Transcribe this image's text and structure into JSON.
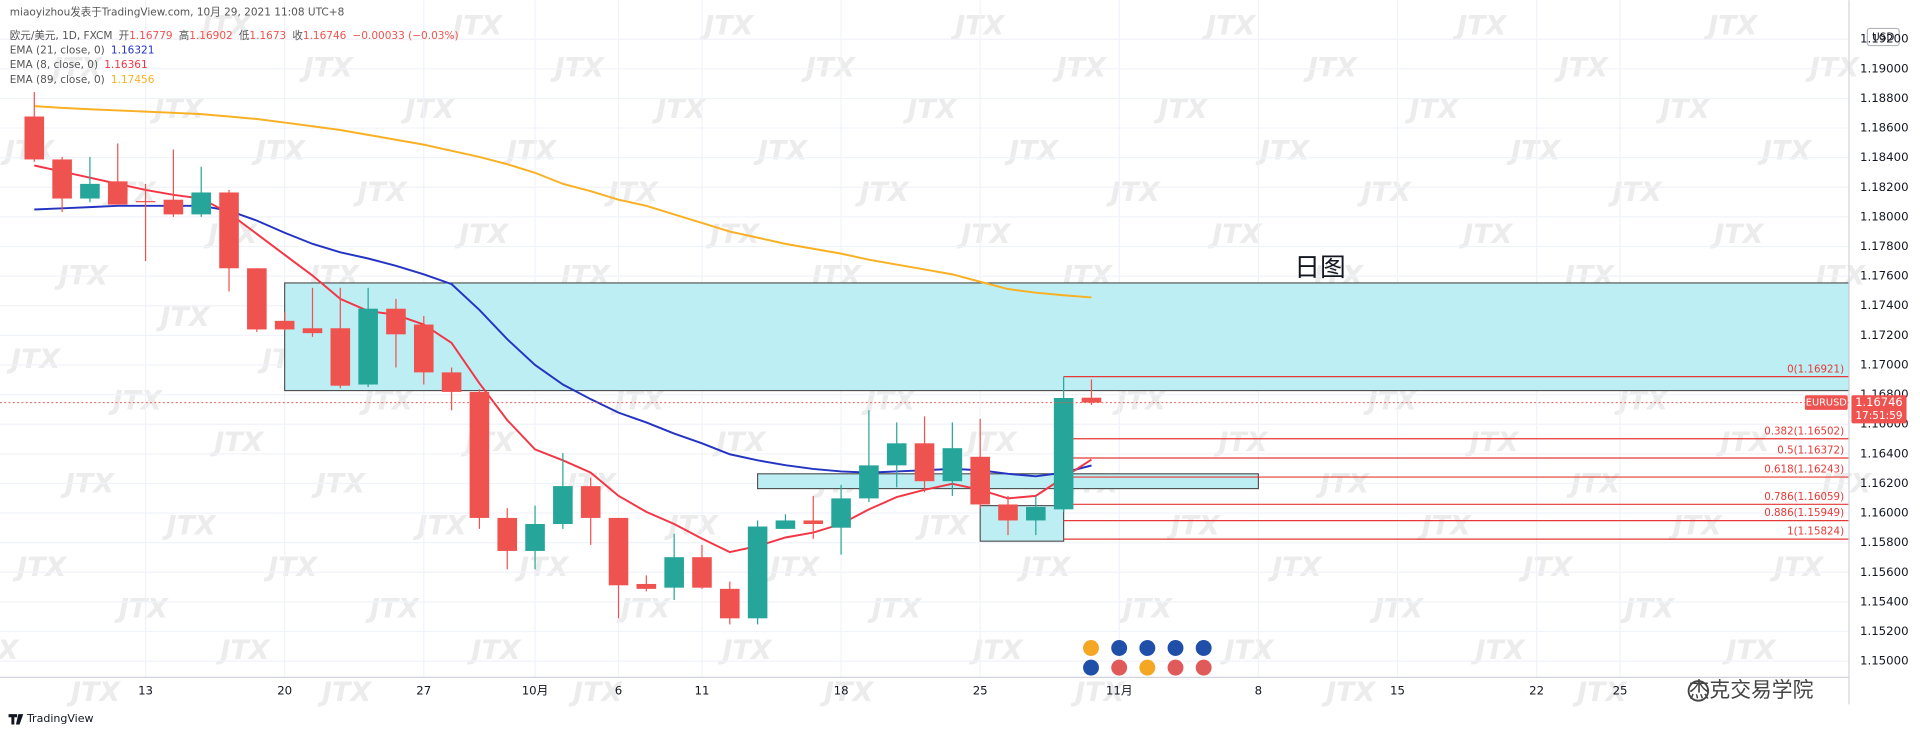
{
  "chart_data": {
    "type": "candlestick",
    "title": "miaoyizhou发表于TradingView.com, 10月 29, 2021 11:08 UTC+8",
    "symbol": "欧元/美元, 1D, FXCM",
    "ohlc_labels": [
      "开",
      "高",
      "低",
      "收"
    ],
    "change": "−0.00033 (−0.03%)",
    "currency": "USD",
    "symbol_tag": "EURUSD",
    "countdown": "17:51:59",
    "annotation": "日图",
    "watermark": "JTX",
    "credit": "杰克交易学院",
    "footer": "TradingView",
    "grid": true,
    "up_color": "#26a69a",
    "down_color": "#ef5350",
    "categories": [
      null,
      null,
      null,
      null,
      "13",
      null,
      null,
      null,
      null,
      "20",
      null,
      null,
      null,
      null,
      "27",
      null,
      null,
      null,
      "10月",
      null,
      null,
      "6",
      null,
      null,
      "11",
      null,
      null,
      null,
      null,
      "18",
      null,
      null,
      null,
      null,
      "25",
      null,
      null,
      null,
      null,
      "11月",
      null,
      null,
      null,
      null,
      "8",
      null,
      null,
      null,
      null,
      "15",
      null,
      null,
      null,
      null,
      "22",
      null,
      null,
      "25"
    ],
    "open": [
      1.18678,
      1.18388,
      1.18124,
      1.1824,
      1.18107,
      1.18116,
      1.18017,
      1.18165,
      1.17653,
      1.17298,
      1.17248,
      1.17248,
      1.16868,
      1.1738,
      1.17273,
      1.1695,
      1.16818,
      1.15967,
      1.15744,
      1.15926,
      1.16182,
      1.15967,
      1.15521,
      1.15496,
      1.15702,
      1.15488,
      1.15289,
      1.15893,
      1.1595,
      1.15901,
      1.16099,
      1.16322,
      1.16471,
      1.16215,
      1.1638,
      1.16058,
      1.1595,
      1.16025,
      1.16779,
      null,
      null,
      null,
      null,
      null,
      null,
      null,
      null,
      null,
      null,
      null,
      null,
      null,
      null,
      null,
      null,
      null,
      null,
      null
    ],
    "high": [
      1.18843,
      1.18405,
      1.18405,
      1.18496,
      1.18223,
      1.18455,
      1.18339,
      1.18182,
      1.17653,
      1.17355,
      1.17521,
      1.17521,
      1.17521,
      1.17446,
      1.17331,
      1.16983,
      1.16835,
      1.16033,
      1.1605,
      1.16405,
      1.1624,
      1.15967,
      1.15579,
      1.1586,
      1.15785,
      1.15537,
      1.1595,
      1.15992,
      1.16116,
      1.1619,
      1.16694,
      1.16612,
      1.16653,
      1.16612,
      1.16636,
      1.16116,
      1.16116,
      1.16921,
      1.16902,
      null,
      null,
      null,
      null,
      null,
      null,
      null,
      null,
      null,
      null,
      null,
      null,
      null,
      null,
      null,
      null,
      null,
      null,
      null
    ],
    "low": [
      1.18372,
      1.18033,
      1.18099,
      1.18083,
      1.17702,
      1.18,
      1.18,
      1.17496,
      1.17223,
      1.17231,
      1.1719,
      1.16843,
      1.16851,
      1.16983,
      1.16868,
      1.16694,
      1.15893,
      1.1562,
      1.1562,
      1.15893,
      1.15785,
      1.15289,
      1.15471,
      1.15413,
      1.15488,
      1.15248,
      1.15248,
      1.15893,
      1.15826,
      1.15719,
      1.16074,
      1.16174,
      1.1614,
      1.16116,
      1.16033,
      1.15851,
      1.15851,
      1.16008,
      1.1673,
      null,
      null,
      null,
      null,
      null,
      null,
      null,
      null,
      null,
      null,
      null,
      null,
      null,
      null,
      null,
      null,
      null,
      null,
      null
    ],
    "close": [
      1.18388,
      1.18124,
      1.18223,
      1.18083,
      1.18099,
      1.18017,
      1.18165,
      1.17653,
      1.1724,
      1.1724,
      1.17215,
      1.1686,
      1.1738,
      1.17207,
      1.1695,
      1.16818,
      1.15967,
      1.15744,
      1.15926,
      1.16182,
      1.15967,
      1.15512,
      1.15488,
      1.15702,
      1.15496,
      1.15289,
      1.15909,
      1.1595,
      1.15926,
      1.16099,
      1.16322,
      1.16471,
      1.16215,
      1.16438,
      1.16058,
      1.1595,
      1.16041,
      1.16777,
      1.16746,
      null,
      null,
      null,
      null,
      null,
      null,
      null,
      null,
      null,
      null,
      null,
      null,
      null,
      null,
      null,
      null,
      null,
      null,
      null
    ],
    "series": [
      {
        "name": "EMA (21, close, 0)",
        "color": "#2434c2",
        "values": [
          1.1805,
          1.18058,
          1.18066,
          1.18075,
          1.18075,
          1.18075,
          1.18075,
          1.18042,
          1.17975,
          1.17893,
          1.17818,
          1.17761,
          1.17719,
          1.1767,
          1.17612,
          1.17546,
          1.17372,
          1.17174,
          1.17,
          1.16868,
          1.16769,
          1.16678,
          1.16612,
          1.16537,
          1.16471,
          1.16397,
          1.16356,
          1.16323,
          1.16298,
          1.16281,
          1.16273,
          1.16281,
          1.16289,
          1.16298,
          1.16289,
          1.16265,
          1.16248,
          1.16273,
          1.16321,
          null,
          null,
          null,
          null,
          null,
          null,
          null,
          null,
          null,
          null,
          null,
          null,
          null,
          null,
          null,
          null,
          null,
          null,
          null
        ]
      },
      {
        "name": "EMA (8, close, 0)",
        "color": "#f23645",
        "values": [
          1.18347,
          1.18306,
          1.18265,
          1.18223,
          1.18182,
          1.18149,
          1.18124,
          1.18025,
          1.17885,
          1.17744,
          1.17604,
          1.17446,
          1.17364,
          1.17339,
          1.17273,
          1.17149,
          1.16876,
          1.16628,
          1.1643,
          1.16356,
          1.16273,
          1.16116,
          1.16008,
          1.15926,
          1.15827,
          1.15736,
          1.15777,
          1.15835,
          1.15868,
          1.15926,
          1.16025,
          1.16108,
          1.16157,
          1.16198,
          1.16157,
          1.16099,
          1.16116,
          1.1624,
          1.16361,
          null,
          null,
          null,
          null,
          null,
          null,
          null,
          null,
          null,
          null,
          null,
          null,
          null,
          null,
          null,
          null,
          null,
          null,
          null
        ]
      },
      {
        "name": "EMA (89, close, 0)",
        "color": "#f9b023",
        "values": [
          1.18748,
          1.18736,
          1.18727,
          1.18719,
          1.18711,
          1.18703,
          1.18694,
          1.18678,
          1.18661,
          1.18637,
          1.18612,
          1.18587,
          1.18554,
          1.18521,
          1.18488,
          1.18446,
          1.18405,
          1.18356,
          1.18298,
          1.18223,
          1.18174,
          1.18116,
          1.18075,
          1.18017,
          1.17959,
          1.17901,
          1.1786,
          1.17818,
          1.17785,
          1.17752,
          1.17711,
          1.17678,
          1.17645,
          1.17612,
          1.17562,
          1.17513,
          1.17488,
          1.17471,
          1.17456,
          null,
          null,
          null,
          null,
          null,
          null,
          null,
          null,
          null,
          null,
          null,
          null,
          null,
          null,
          null,
          null,
          null,
          null,
          null
        ]
      }
    ],
    "zones": [
      {
        "top": 1.17554,
        "bottom": 1.16827,
        "from": 9,
        "extend": true
      },
      {
        "top": 1.16265,
        "bottom": 1.16165,
        "from": 26,
        "to": 44
      },
      {
        "top": 1.1605,
        "bottom": 1.1581,
        "from": 34,
        "to": 37
      }
    ],
    "zone_color": "#bdeef4",
    "fib_from": 37,
    "fib_color": "#e53935",
    "fib_levels": [
      {
        "value": 1.16921,
        "label": "0(1.16921)"
      },
      {
        "value": 1.16502,
        "label": "0.382(1.16502)"
      },
      {
        "value": 1.16372,
        "label": "0.5(1.16372)"
      },
      {
        "value": 1.16243,
        "label": "0.618(1.16243)"
      },
      {
        "value": 1.16059,
        "label": "0.786(1.16059)"
      },
      {
        "value": 1.15949,
        "label": "0.886(1.15949)"
      },
      {
        "value": 1.15824,
        "label": "1(1.15824)"
      }
    ],
    "ylim": [
      1.1489,
      1.19463
    ],
    "yticks": [
      {
        "value": 1.15,
        "label": "1.15000"
      },
      {
        "value": 1.152,
        "label": "1.15200"
      },
      {
        "value": 1.154,
        "label": "1.15400"
      },
      {
        "value": 1.156,
        "label": "1.15600"
      },
      {
        "value": 1.158,
        "label": "1.15800"
      },
      {
        "value": 1.16,
        "label": "1.16000"
      },
      {
        "value": 1.162,
        "label": "1.16200"
      },
      {
        "value": 1.164,
        "label": "1.16400"
      },
      {
        "value": 1.166,
        "label": "1.16600"
      },
      {
        "value": 1.168,
        "label": "1.16800"
      },
      {
        "value": 1.17,
        "label": "1.17000"
      },
      {
        "value": 1.172,
        "label": "1.17200"
      },
      {
        "value": 1.174,
        "label": "1.17400"
      },
      {
        "value": 1.176,
        "label": "1.17600"
      },
      {
        "value": 1.178,
        "label": "1.17800"
      },
      {
        "value": 1.18,
        "label": "1.18000"
      },
      {
        "value": 1.182,
        "label": "1.18200"
      },
      {
        "value": 1.184,
        "label": "1.18400"
      },
      {
        "value": 1.186,
        "label": "1.18600"
      },
      {
        "value": 1.188,
        "label": "1.18800"
      },
      {
        "value": 1.19,
        "label": "1.19000"
      },
      {
        "value": 1.192,
        "label": "1.19200"
      }
    ]
  }
}
